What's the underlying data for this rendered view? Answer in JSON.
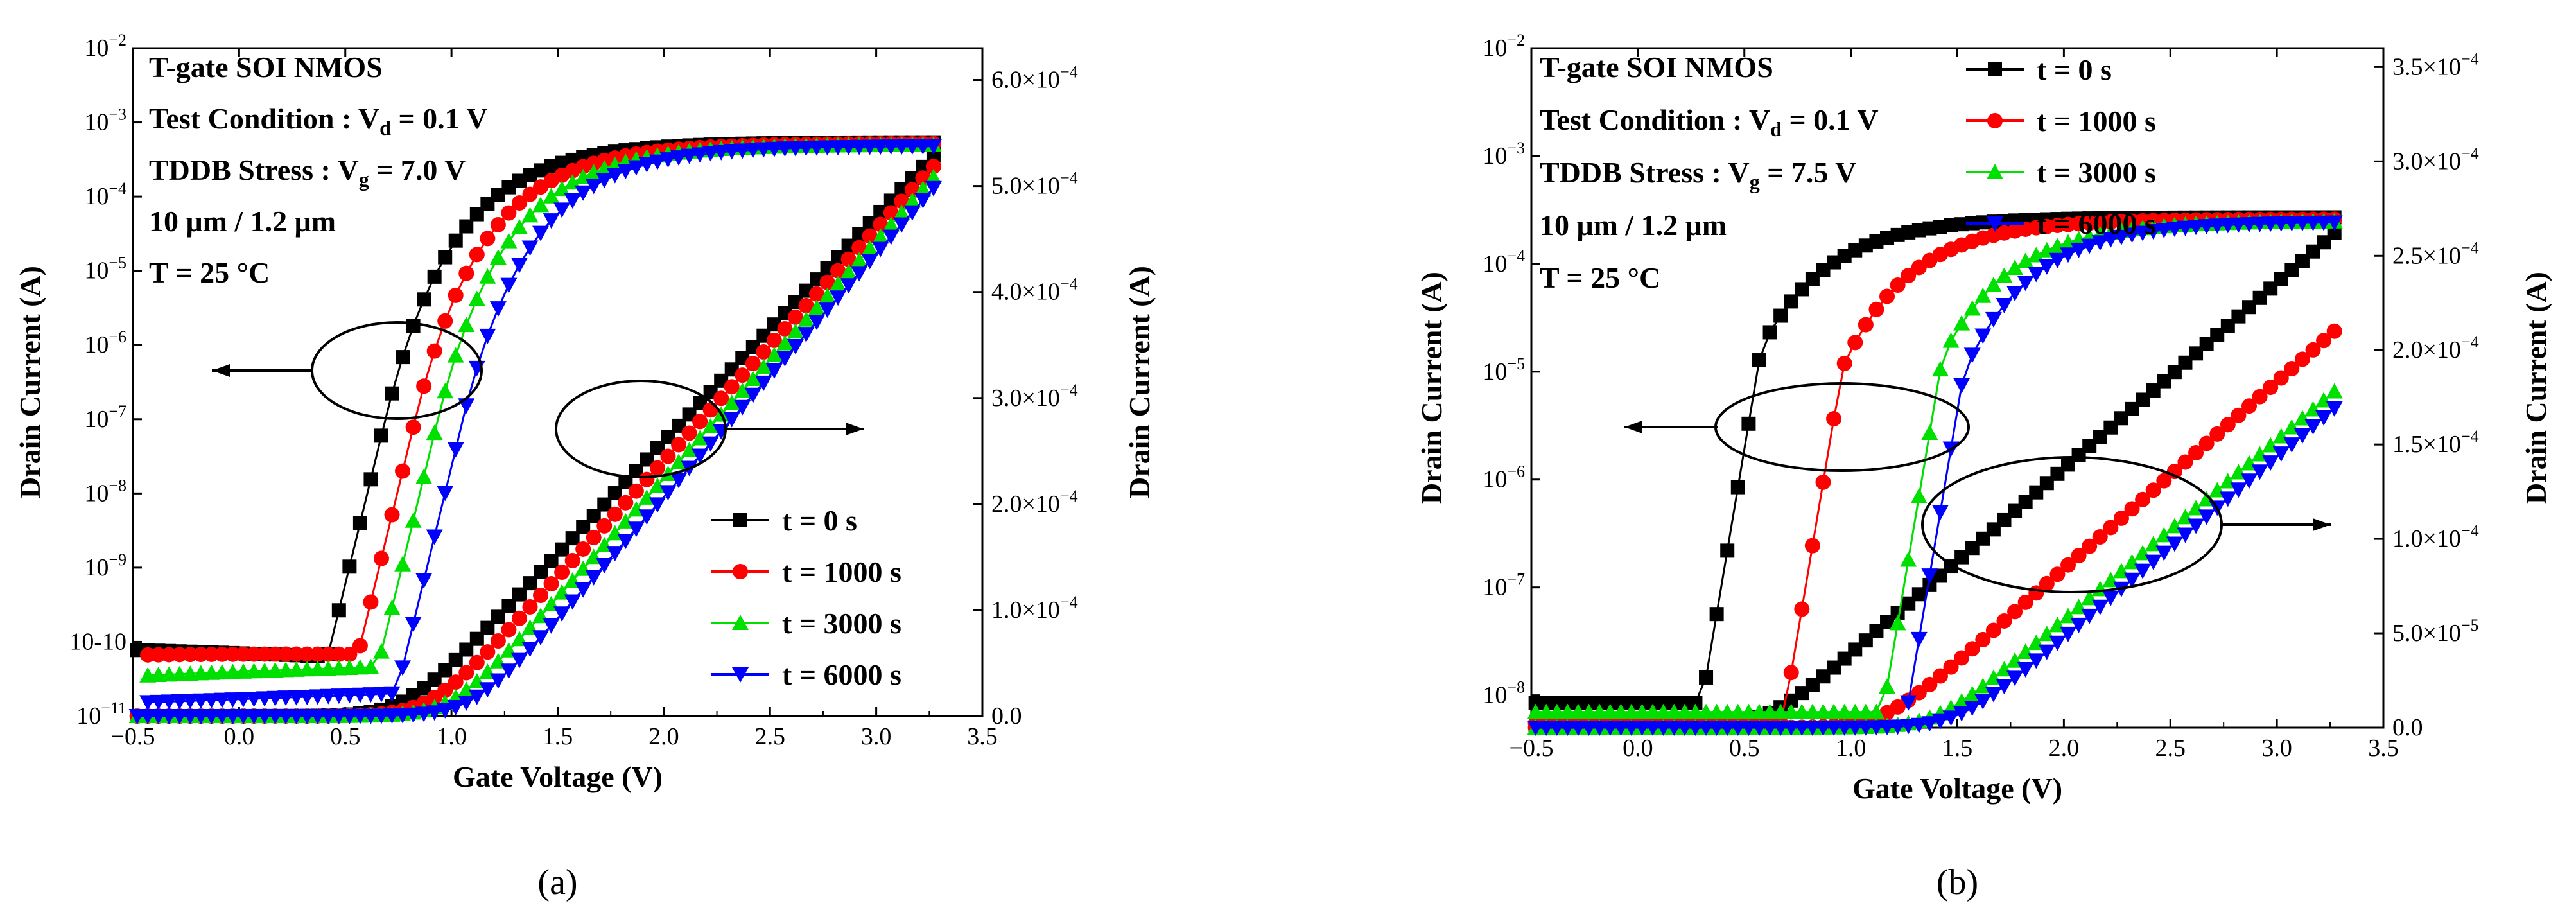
{
  "colors": {
    "s0": "#000000",
    "s1": "#ff0000",
    "s2": "#00e000",
    "s3": "#0000ff"
  },
  "chart_data": [
    {
      "type": "scatter",
      "caption": "(a)",
      "xlabel": "Gate Voltage (V)",
      "ylabel_left": "Drain Current (A)",
      "ylabel_right": "Drain Current (A)",
      "xlim": [
        -0.5,
        3.5
      ],
      "ylim_left_log10": [
        -11,
        -2
      ],
      "ylim_right": [
        0,
        0.00063
      ],
      "x_ticks": [
        "-0.5",
        "0.0",
        "0.5",
        "1.0",
        "1.5",
        "2.0",
        "2.5",
        "3.0",
        "3.5"
      ],
      "y_left_ticks": [
        "10-11",
        "10-10",
        "10-9",
        "10-8",
        "10-7",
        "10-6",
        "10-5",
        "10-4",
        "10-3",
        "10-2"
      ],
      "y_right_ticks": [
        "0.0",
        "1.0×10-4",
        "2.0×10-4",
        "3.0×10-4",
        "4.0×10-4",
        "5.0×10-4",
        "6.0×10-4"
      ],
      "annotations": {
        "line1": "T-gate SOI NMOS",
        "line2": "Test Condition : Vd = 0.1 V",
        "line3": "TDDB Stress : Vg = 7.0 V",
        "line4": "10 μm / 1.2 μm",
        "line5": "T = 25 °C"
      },
      "legend": [
        "t = 0 s",
        "t = 1000 s",
        "t = 3000 s",
        "t = 6000 s"
      ],
      "legend_position": "bottom-right",
      "vth": [
        0.4,
        0.53,
        0.63,
        0.74
      ],
      "lin_vth": [
        0.78,
        0.9,
        1.0,
        1.1
      ],
      "lin_at_3_3V": [
        0.000535,
        0.000525,
        0.000515,
        0.000505
      ],
      "log_sat": [
        0.00054,
        0.00052,
        0.0005,
        0.00048
      ],
      "log_leak": [
        4e-11,
        3e-11,
        2.5e-11,
        2e-11
      ],
      "series": [
        {
          "name": "t = 0 s",
          "marker": "square"
        },
        {
          "name": "t = 1000 s",
          "marker": "circle"
        },
        {
          "name": "t = 3000 s",
          "marker": "triangle-up"
        },
        {
          "name": "t = 6000 s",
          "marker": "triangle-down"
        }
      ]
    },
    {
      "type": "scatter",
      "caption": "(b)",
      "xlabel": "Gate Voltage (V)",
      "ylabel_left": "Drain Current (A)",
      "ylabel_right": "Drain Current (A)",
      "xlim": [
        -0.5,
        3.5
      ],
      "ylim_left_log10": [
        -8.3,
        -2
      ],
      "ylim_right": [
        0,
        0.00036
      ],
      "x_ticks": [
        "-0.5",
        "0.0",
        "0.5",
        "1.0",
        "1.5",
        "2.0",
        "2.5",
        "3.0",
        "3.5"
      ],
      "y_left_ticks": [
        "10-8",
        "10-7",
        "10-6",
        "10-5",
        "10-4",
        "10-3",
        "10-2"
      ],
      "y_right_ticks": [
        "0.0",
        "5.0×10-5",
        "1.0×10-4",
        "1.5×10-4",
        "2.0×10-4",
        "2.5×10-4",
        "3.0×10-4",
        "3.5×10-4"
      ],
      "annotations": {
        "line1": "T-gate SOI NMOS",
        "line2": "Test Condition : Vd = 0.1 V",
        "line3": "TDDB Stress : Vg = 7.5 V",
        "line4": "10 μm / 1.2 μm",
        "line5": "T = 25 °C"
      },
      "legend": [
        "t = 0 s",
        "t = 1000 s",
        "t = 3000 s",
        "t = 6000 s"
      ],
      "legend_position": "top-center",
      "vth": [
        0.3,
        0.68,
        1.15,
        1.25
      ],
      "lin_vth": [
        0.6,
        1.15,
        1.4,
        1.5
      ],
      "lin_at_3_3V": [
        0.000265,
        0.000213,
        0.000181,
        0.000172
      ],
      "log_sat": [
        0.00027,
        0.00026,
        0.00025,
        0.000245
      ],
      "log_leak": [
        8.5e-09,
        5.5e-09,
        7e-09,
        5e-09
      ],
      "series": [
        {
          "name": "t = 0 s",
          "marker": "square"
        },
        {
          "name": "t = 1000 s",
          "marker": "circle"
        },
        {
          "name": "t = 3000 s",
          "marker": "triangle-up"
        },
        {
          "name": "t = 6000 s",
          "marker": "triangle-down"
        }
      ]
    }
  ]
}
